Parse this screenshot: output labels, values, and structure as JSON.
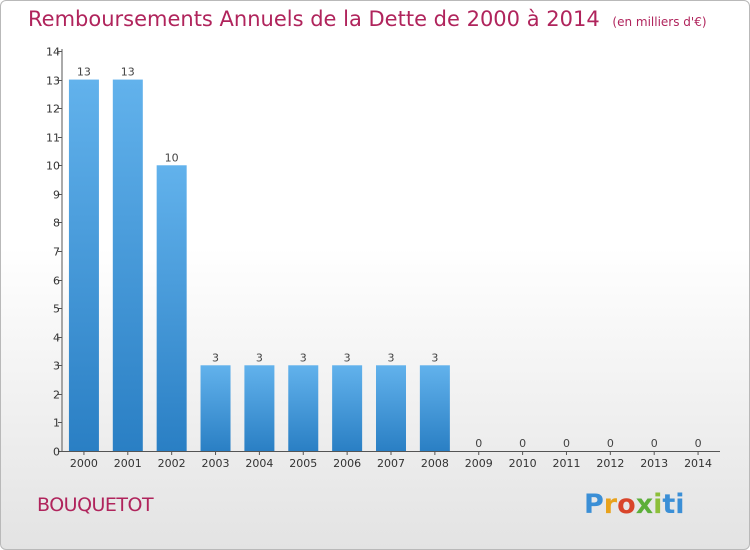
{
  "title": "Remboursements Annuels de la Dette de 2000 à 2014",
  "subtitle": "(en milliers d'€)",
  "commune": "BOUQUETOT",
  "logo": [
    "P",
    "r",
    "o",
    "x",
    "i",
    "ti"
  ],
  "colors": {
    "bar_light": "#62b2ec",
    "bar_dark": "#2a7fc4",
    "title": "#b0245c",
    "axis": "#555555"
  },
  "chart_data": {
    "type": "bar",
    "categories": [
      "2000",
      "2001",
      "2002",
      "2003",
      "2004",
      "2005",
      "2006",
      "2007",
      "2008",
      "2009",
      "2010",
      "2011",
      "2012",
      "2013",
      "2014"
    ],
    "values": [
      13,
      13,
      10,
      3,
      3,
      3,
      3,
      3,
      3,
      0,
      0,
      0,
      0,
      0,
      0
    ],
    "ylim": [
      0,
      14
    ],
    "yticks": [
      0,
      1,
      2,
      3,
      4,
      5,
      6,
      7,
      8,
      9,
      10,
      11,
      12,
      13,
      14
    ],
    "grid": false,
    "data_labels": true
  }
}
